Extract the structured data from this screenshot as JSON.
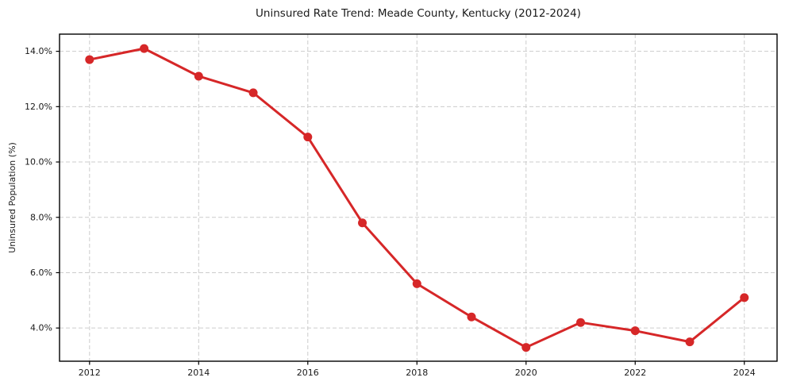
{
  "page": {
    "background": "#ffffff"
  },
  "chart_data": {
    "type": "line",
    "title": "Uninsured Rate Trend: Meade County, Kentucky (2012-2024)",
    "xlabel": "",
    "ylabel": "Uninsured Population (%)",
    "x": [
      2012,
      2013,
      2014,
      2015,
      2016,
      2017,
      2018,
      2019,
      2020,
      2021,
      2022,
      2023,
      2024
    ],
    "series": [
      {
        "name": "Uninsured rate",
        "values": [
          13.7,
          14.1,
          13.1,
          12.5,
          10.9,
          7.8,
          5.6,
          4.4,
          3.3,
          4.2,
          3.9,
          3.5,
          5.1
        ],
        "color": "#d62728",
        "marker": "circle",
        "line_width": 3,
        "marker_radius": 5.5
      }
    ],
    "xlim": [
      2011.45,
      2024.6
    ],
    "ylim": [
      2.8,
      14.62
    ],
    "xticks": [
      2012,
      2014,
      2016,
      2018,
      2020,
      2022,
      2024
    ],
    "xtick_labels": [
      "2012",
      "2014",
      "2016",
      "2018",
      "2020",
      "2022",
      "2024"
    ],
    "yticks": [
      4,
      6,
      8,
      10,
      12,
      14
    ],
    "ytick_labels": [
      "4.0%",
      "6.0%",
      "8.0%",
      "10.0%",
      "12.0%",
      "14.0%"
    ],
    "grid": true,
    "grid_style": "dashed",
    "legend_position": "none",
    "colors": {
      "grid": "#cccccc",
      "spine": "#000000",
      "text": "#1a1a1a",
      "background": "#ffffff"
    }
  }
}
